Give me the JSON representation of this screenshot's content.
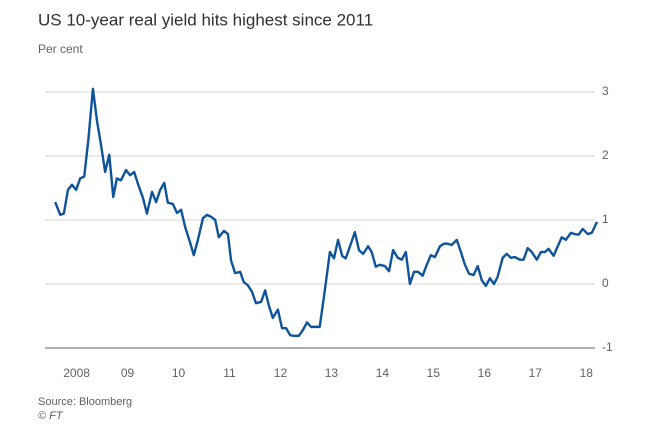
{
  "chart_data": {
    "type": "line",
    "title": "US 10-year real yield hits highest since 2011",
    "subtitle": "Per cent",
    "source": "Source: Bloomberg",
    "credit": "© FT",
    "color": "#0f5499",
    "grid": true,
    "y_axis_side": "right",
    "xlim": [
      2007.88,
      2018.75
    ],
    "ylim": [
      -1,
      3.3
    ],
    "yticks": [
      3,
      2,
      1,
      0,
      -1
    ],
    "xticks": [
      {
        "value": 2008.5,
        "label": "2008"
      },
      {
        "value": 2009.5,
        "label": "09"
      },
      {
        "value": 2010.5,
        "label": "10"
      },
      {
        "value": 2011.5,
        "label": "11"
      },
      {
        "value": 2012.5,
        "label": "12"
      },
      {
        "value": 2013.5,
        "label": "13"
      },
      {
        "value": 2014.5,
        "label": "14"
      },
      {
        "value": 2015.5,
        "label": "15"
      },
      {
        "value": 2016.5,
        "label": "16"
      },
      {
        "value": 2017.5,
        "label": "17"
      },
      {
        "value": 2018.5,
        "label": "18"
      }
    ],
    "x": [
      2008.08,
      2008.18,
      2008.25,
      2008.33,
      2008.41,
      2008.49,
      2008.57,
      2008.65,
      2008.73,
      2008.82,
      2008.9,
      2008.98,
      2009.06,
      2009.14,
      2009.22,
      2009.29,
      2009.37,
      2009.47,
      2009.55,
      2009.63,
      2009.71,
      2009.8,
      2009.88,
      2009.98,
      2010.06,
      2010.14,
      2010.22,
      2010.29,
      2010.39,
      2010.47,
      2010.55,
      2010.63,
      2010.73,
      2010.8,
      2010.88,
      2010.98,
      2011.06,
      2011.14,
      2011.22,
      2011.29,
      2011.39,
      2011.47,
      2011.53,
      2011.61,
      2011.71,
      2011.78,
      2011.86,
      2011.94,
      2012.02,
      2012.12,
      2012.2,
      2012.27,
      2012.35,
      2012.45,
      2012.53,
      2012.61,
      2012.69,
      2012.76,
      2012.86,
      2012.94,
      2013.02,
      2013.1,
      2013.18,
      2013.27,
      2013.37,
      2013.47,
      2013.55,
      2013.63,
      2013.71,
      2013.78,
      2013.86,
      2013.96,
      2014.04,
      2014.12,
      2014.22,
      2014.29,
      2014.37,
      2014.45,
      2014.55,
      2014.63,
      2014.71,
      2014.8,
      2014.88,
      2014.96,
      2015.04,
      2015.12,
      2015.2,
      2015.29,
      2015.37,
      2015.45,
      2015.53,
      2015.63,
      2015.71,
      2015.78,
      2015.86,
      2015.96,
      2016.04,
      2016.12,
      2016.2,
      2016.29,
      2016.37,
      2016.45,
      2016.53,
      2016.61,
      2016.69,
      2016.76,
      2016.86,
      2016.94,
      2017.02,
      2017.1,
      2017.2,
      2017.27,
      2017.35,
      2017.43,
      2017.53,
      2017.61,
      2017.69,
      2017.76,
      2017.86,
      2017.94,
      2018.02,
      2018.1,
      2018.2,
      2018.27,
      2018.35,
      2018.43,
      2018.53,
      2018.61,
      2018.71
    ],
    "values": [
      1.28,
      1.08,
      1.1,
      1.47,
      1.55,
      1.47,
      1.65,
      1.68,
      2.25,
      3.05,
      2.55,
      2.17,
      1.75,
      2.02,
      1.36,
      1.65,
      1.62,
      1.78,
      1.7,
      1.75,
      1.55,
      1.35,
      1.1,
      1.44,
      1.28,
      1.47,
      1.58,
      1.27,
      1.25,
      1.11,
      1.16,
      0.89,
      0.64,
      0.45,
      0.69,
      1.03,
      1.08,
      1.05,
      1.0,
      0.73,
      0.83,
      0.78,
      0.37,
      0.17,
      0.19,
      0.03,
      -0.02,
      -0.12,
      -0.3,
      -0.28,
      -0.1,
      -0.33,
      -0.53,
      -0.4,
      -0.69,
      -0.69,
      -0.8,
      -0.81,
      -0.81,
      -0.72,
      -0.6,
      -0.67,
      -0.67,
      -0.67,
      -0.1,
      0.5,
      0.4,
      0.69,
      0.44,
      0.4,
      0.58,
      0.81,
      0.53,
      0.47,
      0.59,
      0.5,
      0.27,
      0.3,
      0.28,
      0.2,
      0.53,
      0.41,
      0.38,
      0.5,
      0.0,
      0.19,
      0.19,
      0.13,
      0.3,
      0.45,
      0.42,
      0.59,
      0.63,
      0.63,
      0.61,
      0.69,
      0.5,
      0.3,
      0.16,
      0.14,
      0.28,
      0.06,
      -0.03,
      0.09,
      0.0,
      0.11,
      0.41,
      0.47,
      0.41,
      0.42,
      0.38,
      0.38,
      0.56,
      0.5,
      0.38,
      0.5,
      0.5,
      0.55,
      0.44,
      0.59,
      0.73,
      0.69,
      0.8,
      0.78,
      0.77,
      0.86,
      0.78,
      0.8,
      0.97
    ]
  }
}
